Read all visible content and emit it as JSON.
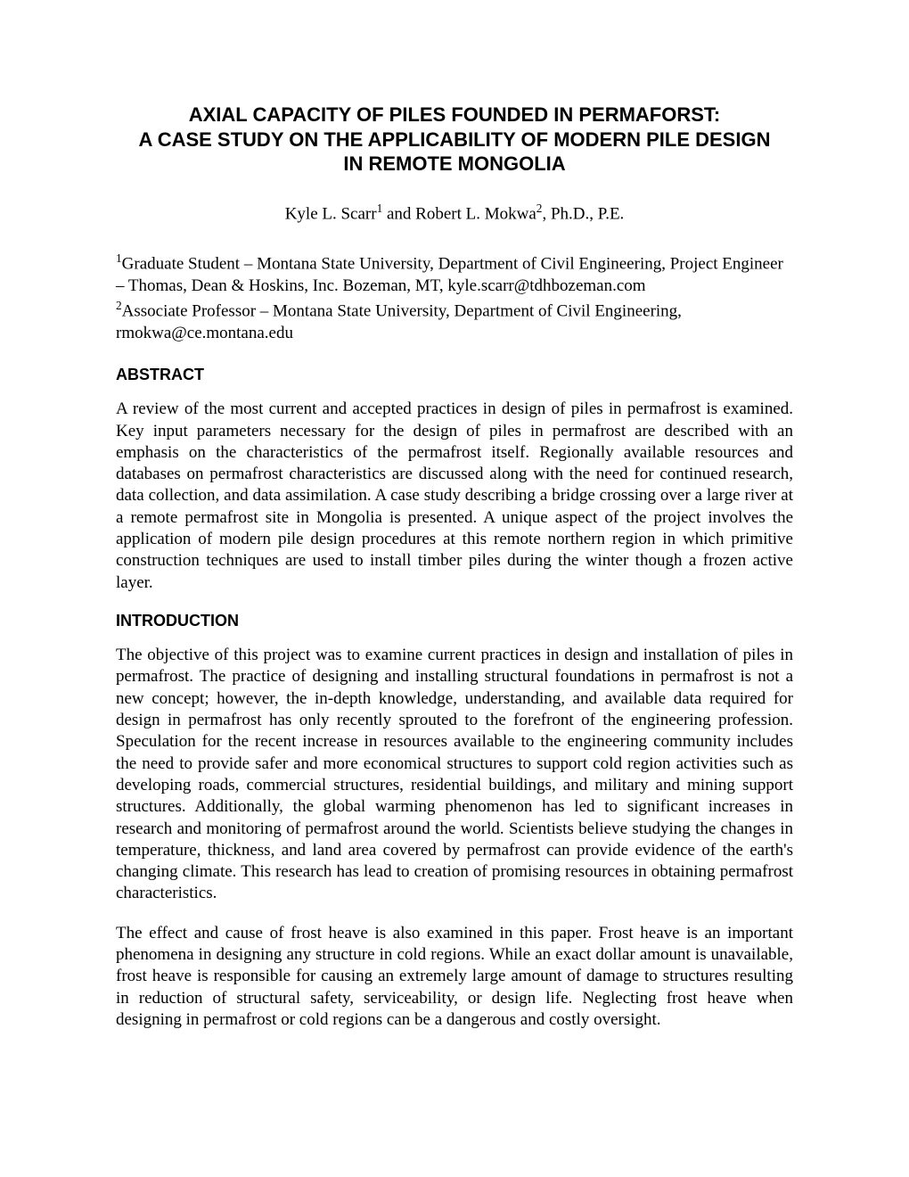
{
  "title": {
    "line1": "AXIAL CAPACITY OF PILES FOUNDED IN PERMAFORST:",
    "line2": "A CASE STUDY ON THE APPLICABILITY OF MODERN PILE DESIGN",
    "line3": "IN REMOTE MONGOLIA"
  },
  "authors": {
    "name1": "Kyle L. Scarr",
    "sup1": "1",
    "conj": " and ",
    "name2": "Robert L. Mokwa",
    "sup2": "2",
    "suffix": ", Ph.D., P.E."
  },
  "affiliations": {
    "a1_sup": "1",
    "a1_text": "Graduate Student – Montana State University, Department of Civil Engineering, Project Engineer – Thomas, Dean & Hoskins, Inc. Bozeman, MT, kyle.scarr@tdhbozeman.com",
    "a2_sup": "2",
    "a2_text": "Associate Professor – Montana State University, Department of Civil Engineering, rmokwa@ce.montana.edu"
  },
  "sections": {
    "abstract_heading": "ABSTRACT",
    "abstract_body": "A review of the most current and accepted practices in design of piles in permafrost is examined. Key input parameters necessary for the design of piles in permafrost are described with an emphasis on the characteristics of the permafrost itself.  Regionally available resources and databases on permafrost characteristics are discussed along with the need for continued research, data collection, and data assimilation.  A case study describing a bridge crossing over a large river at a remote permafrost site in Mongolia is presented.  A unique aspect of the project involves the application of modern pile design procedures at this remote northern region in which primitive construction techniques are used to install timber piles during the winter though a frozen active layer.",
    "intro_heading": "INTRODUCTION",
    "intro_p1": "The objective of this project was to examine current practices in design and installation of piles in permafrost.  The practice of designing and installing structural foundations in permafrost is not a new concept; however, the in-depth knowledge, understanding, and available data required for design in permafrost has only recently sprouted to the forefront of the engineering profession. Speculation for the recent increase in resources available to the engineering community includes the need to provide safer and more economical structures to support cold region activities such as developing roads, commercial structures, residential buildings, and military and mining support structures.  Additionally, the global warming phenomenon has led to significant increases in research and monitoring of permafrost around the world.  Scientists believe studying the changes in temperature, thickness, and land area covered by permafrost can provide evidence of the earth's changing climate.  This research has lead to creation of promising resources in obtaining permafrost characteristics.",
    "intro_p2": "The effect and cause of frost heave is also examined in this paper.  Frost heave is an important phenomena in designing any structure in cold regions.  While an exact dollar amount is unavailable, frost heave is responsible for causing an extremely large amount of damage to structures resulting in reduction of structural safety, serviceability, or design life.  Neglecting frost heave when designing in permafrost or cold regions can be a dangerous and costly oversight."
  },
  "style": {
    "background_color": "#ffffff",
    "text_color": "#000000",
    "title_font": "Arial",
    "body_font": "Times New Roman",
    "title_fontsize": 22,
    "body_fontsize": 19,
    "heading_fontsize": 18
  }
}
